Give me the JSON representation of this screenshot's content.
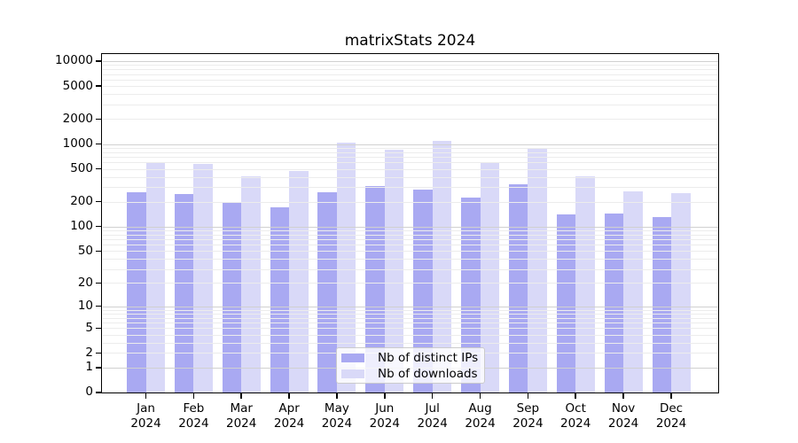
{
  "chart_data": {
    "type": "bar",
    "title": "matrixStats 2024",
    "yscale": "log10(value+1) with 0 at baseline",
    "ylim": [
      0,
      12000
    ],
    "y_ticks": [
      0,
      1,
      2,
      5,
      10,
      20,
      50,
      100,
      200,
      500,
      1000,
      2000,
      5000,
      10000
    ],
    "grid": "horizontal major and minor log gridlines, drawn over bars",
    "legend_position": "bottom-center inside plot",
    "categories": [
      "Jan 2024",
      "Feb 2024",
      "Mar 2024",
      "Apr 2024",
      "May 2024",
      "Jun 2024",
      "Jul 2024",
      "Aug 2024",
      "Sep 2024",
      "Oct 2024",
      "Nov 2024",
      "Dec 2024"
    ],
    "series": [
      {
        "name": "Nb of distinct IPs",
        "color": "#a9a9f2",
        "values": [
          258,
          250,
          200,
          170,
          260,
          310,
          280,
          225,
          325,
          140,
          145,
          130
        ]
      },
      {
        "name": "Nb of downloads",
        "color": "#d9d9f8",
        "values": [
          600,
          570,
          410,
          470,
          1030,
          850,
          1090,
          590,
          875,
          405,
          270,
          255
        ]
      }
    ]
  }
}
